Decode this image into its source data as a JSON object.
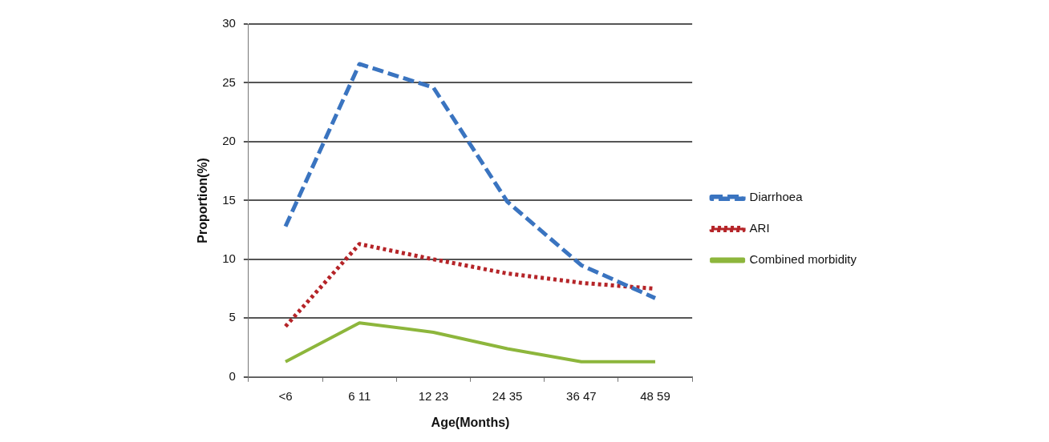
{
  "chart_data": {
    "type": "line",
    "xlabel": "Age(Months)",
    "ylabel": "Proportion(%)",
    "categories": [
      "<6",
      "6 11",
      "12 23",
      "24 35",
      "36 47",
      "48 59"
    ],
    "series": [
      {
        "name": "Diarrhoea",
        "color": "#3a74c0",
        "line_style": "dashed",
        "values": [
          12.8,
          26.6,
          24.6,
          14.9,
          9.5,
          6.7
        ]
      },
      {
        "name": "ARI",
        "color": "#b52428",
        "line_style": "dotted",
        "values": [
          4.3,
          11.3,
          10.0,
          8.8,
          8.0,
          7.5
        ]
      },
      {
        "name": "Combined morbidity",
        "color": "#8db63c",
        "line_style": "solid",
        "values": [
          1.3,
          4.6,
          3.8,
          2.4,
          1.3,
          1.3
        ]
      }
    ],
    "ylim": [
      0,
      30
    ],
    "yticks": [
      0,
      5,
      10,
      15,
      20,
      25,
      30
    ],
    "grid": "y",
    "legend": "right",
    "marker": "none"
  }
}
